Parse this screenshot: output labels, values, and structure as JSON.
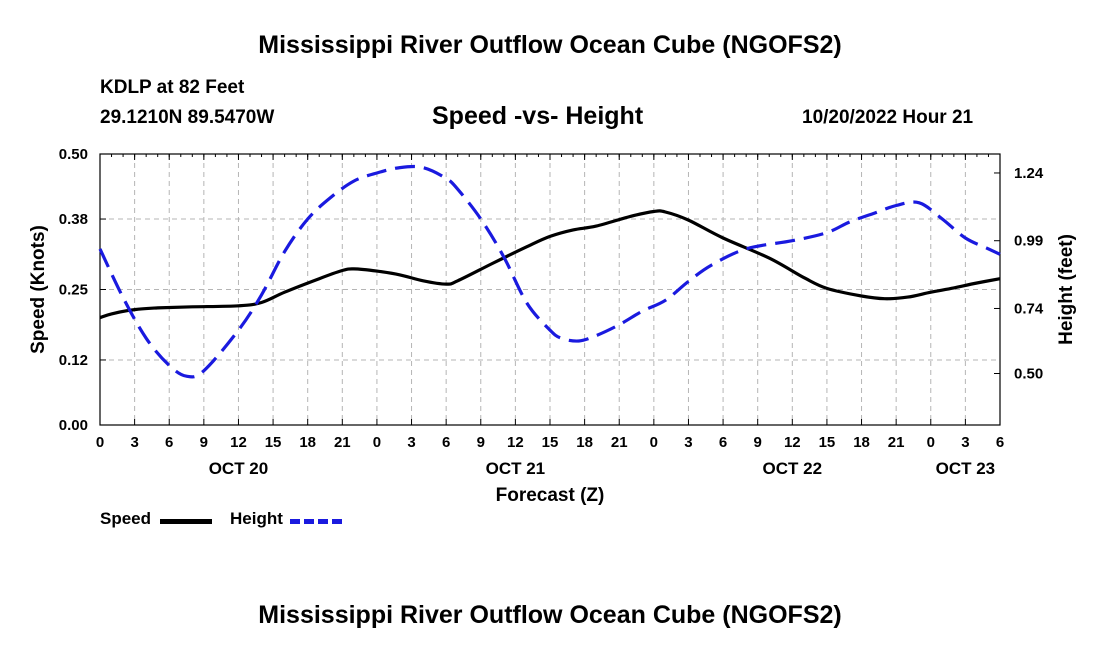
{
  "page": {
    "title_top": "Mississippi River Outflow Ocean Cube (NGOFS2)",
    "title_bottom": "Mississippi River Outflow Ocean Cube (NGOFS2)",
    "station_line": "KDLP at 82 Feet",
    "coords_line": "29.1210N  89.5470W",
    "subtitle": "Speed -vs- Height",
    "datetime": "10/20/2022 Hour 21"
  },
  "chart_data": {
    "type": "line",
    "title": "Speed -vs- Height",
    "xlabel": "Forecast (Z)",
    "ylabel": "Speed (Knots)",
    "y2label": "Height (feet)",
    "x_hours_range": [
      0,
      78
    ],
    "x_tick_step_hours": 3,
    "x_tick_labels": [
      "0",
      "3",
      "6",
      "9",
      "12",
      "15",
      "18",
      "21",
      "0",
      "3",
      "6",
      "9",
      "12",
      "15",
      "18",
      "21",
      "0",
      "3",
      "6",
      "9",
      "12",
      "15",
      "18",
      "21",
      "0",
      "3",
      "6"
    ],
    "date_labels": [
      {
        "text": "OCT 20",
        "hour": 12
      },
      {
        "text": "OCT 21",
        "hour": 36
      },
      {
        "text": "OCT 22",
        "hour": 60
      },
      {
        "text": "OCT 23",
        "hour": 75
      }
    ],
    "ylim": [
      0,
      0.5
    ],
    "y_ticks": [
      0.0,
      0.12,
      0.25,
      0.38,
      0.5
    ],
    "y_tick_labels": [
      "0.00",
      "0.12",
      "0.25",
      "0.38",
      "0.50"
    ],
    "y2lim": [
      0.31,
      1.31
    ],
    "y2_ticks": [
      0.5,
      0.74,
      0.99,
      1.24
    ],
    "y2_tick_labels": [
      "0.50",
      "0.74",
      "0.99",
      "1.24"
    ],
    "grid": true,
    "series": [
      {
        "name": "Speed",
        "axis": "left",
        "color": "#000000",
        "dash": "solid",
        "x": [
          0,
          1,
          3,
          5,
          8,
          12,
          14,
          16,
          19,
          21,
          22,
          24,
          26,
          28,
          30,
          31,
          34,
          37,
          39,
          41,
          43,
          46,
          48,
          49,
          51,
          54,
          58,
          61,
          63,
          66,
          68,
          70,
          72,
          74,
          76,
          78
        ],
        "y": [
          0.198,
          0.205,
          0.213,
          0.216,
          0.218,
          0.22,
          0.226,
          0.245,
          0.27,
          0.285,
          0.288,
          0.284,
          0.277,
          0.266,
          0.26,
          0.266,
          0.298,
          0.329,
          0.348,
          0.36,
          0.367,
          0.385,
          0.394,
          0.393,
          0.378,
          0.345,
          0.308,
          0.272,
          0.252,
          0.238,
          0.233,
          0.236,
          0.245,
          0.253,
          0.262,
          0.27
        ]
      },
      {
        "name": "Height",
        "axis": "right",
        "color": "#1a1adf",
        "dash": "dashed",
        "x": [
          0,
          2,
          4,
          6,
          7.5,
          9,
          12,
          14,
          16,
          18,
          20,
          22,
          24,
          26,
          28,
          30,
          31,
          33,
          35,
          37,
          39,
          40,
          41.5,
          43,
          45,
          47,
          49,
          51,
          53,
          56,
          60,
          63,
          65,
          67,
          69,
          71,
          73,
          75,
          77,
          78
        ],
        "y": [
          0.96,
          0.78,
          0.63,
          0.53,
          0.49,
          0.51,
          0.66,
          0.79,
          0.95,
          1.07,
          1.15,
          1.21,
          1.24,
          1.26,
          1.26,
          1.22,
          1.18,
          1.07,
          0.93,
          0.76,
          0.66,
          0.63,
          0.62,
          0.64,
          0.68,
          0.73,
          0.77,
          0.84,
          0.9,
          0.96,
          0.99,
          1.02,
          1.06,
          1.09,
          1.12,
          1.13,
          1.07,
          1.0,
          0.96,
          0.94
        ]
      }
    ],
    "legend": [
      {
        "label": "Speed",
        "color": "#000000",
        "dash": "solid"
      },
      {
        "label": "Height",
        "color": "#1a1adf",
        "dash": "dashed"
      }
    ]
  }
}
